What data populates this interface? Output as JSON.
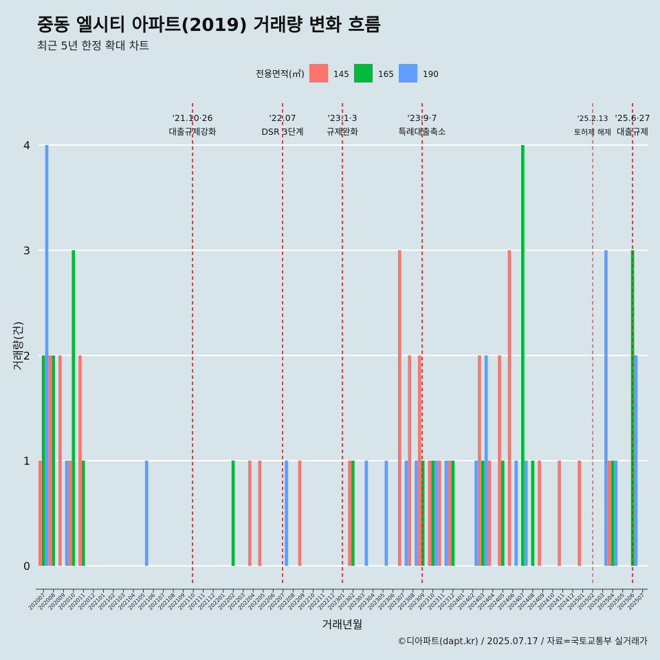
{
  "title": "중동 엘시티 아파트(2019) 거래량 변화 흐름",
  "subtitle": "최근 5년 한정 확대 차트",
  "caption": "©디아파트(dapt.kr) / 2025.07.17 / 자료=국토교통부 실거래가",
  "colors": {
    "background": "#d7e4ea",
    "gridline": "#ffffff",
    "event_line": "#e41a1c"
  },
  "chart_data": {
    "type": "bar",
    "title": "중동 엘시티 아파트(2019) 거래량 변화 흐름",
    "subtitle": "최근 5년 한정 확대 차트",
    "xlabel": "거래년월",
    "ylabel": "거래량(건)",
    "ylim": [
      0,
      4
    ],
    "y_ticks": [
      "0",
      "1",
      "2",
      "3",
      "4"
    ],
    "grid": true,
    "legend": {
      "title": "전용면적(㎡)",
      "position": "top"
    },
    "categories": [
      "202007",
      "202008",
      "202009",
      "202010",
      "202011",
      "202012",
      "202101",
      "202102",
      "202103",
      "202104",
      "202105",
      "202106",
      "202107",
      "202108",
      "202109",
      "202110",
      "202111",
      "202112",
      "202201",
      "202202",
      "202203",
      "202204",
      "202205",
      "202206",
      "202207",
      "202208",
      "202209",
      "202210",
      "202211",
      "202212",
      "202301",
      "202302",
      "202303",
      "202304",
      "202305",
      "202306",
      "202307",
      "202308",
      "202309",
      "202310",
      "202311",
      "202312",
      "202401",
      "202402",
      "202403",
      "202404",
      "202405",
      "202406",
      "202407",
      "202408",
      "202409",
      "202410",
      "202411",
      "202412",
      "202501",
      "202502",
      "202503",
      "202504",
      "202505",
      "202506",
      "202507"
    ],
    "series": [
      {
        "name": "145",
        "color": "#f8766d",
        "values": [
          1,
          2,
          2,
          1,
          2,
          0,
          0,
          0,
          0,
          0,
          0,
          0,
          0,
          0,
          0,
          0,
          0,
          0,
          0,
          0,
          0,
          1,
          1,
          0,
          0,
          0,
          1,
          0,
          0,
          0,
          0,
          1,
          0,
          0,
          0,
          0,
          3,
          2,
          2,
          1,
          1,
          1,
          0,
          0,
          2,
          1,
          2,
          3,
          0,
          0,
          1,
          0,
          1,
          0,
          1,
          0,
          0,
          1,
          0,
          0,
          0
        ]
      },
      {
        "name": "165",
        "color": "#00ba38",
        "values": [
          2,
          2,
          0,
          3,
          1,
          0,
          0,
          0,
          0,
          0,
          0,
          0,
          0,
          0,
          0,
          0,
          0,
          0,
          0,
          1,
          0,
          0,
          0,
          0,
          0,
          0,
          0,
          0,
          0,
          0,
          0,
          1,
          0,
          0,
          0,
          0,
          0,
          0,
          1,
          1,
          0,
          1,
          0,
          0,
          1,
          0,
          1,
          0,
          4,
          1,
          0,
          0,
          0,
          0,
          0,
          0,
          0,
          1,
          0,
          3,
          0
        ]
      },
      {
        "name": "190",
        "color": "#619cff",
        "values": [
          4,
          0,
          1,
          0,
          0,
          0,
          0,
          0,
          0,
          0,
          1,
          0,
          0,
          0,
          0,
          0,
          0,
          0,
          0,
          0,
          0,
          0,
          0,
          0,
          1,
          0,
          0,
          0,
          0,
          0,
          0,
          0,
          1,
          0,
          1,
          0,
          1,
          1,
          0,
          1,
          1,
          0,
          0,
          1,
          2,
          0,
          0,
          1,
          1,
          0,
          0,
          0,
          0,
          0,
          0,
          0,
          3,
          1,
          0,
          2,
          0
        ]
      }
    ],
    "events": [
      {
        "date": "'21.10·26",
        "label": "대출규제강화"
      },
      {
        "date": "'22.07",
        "label": "DSR 3단계"
      },
      {
        "date": "'23.1·3",
        "label": "규제완화"
      },
      {
        "date": "'23.9·7",
        "label": "특례대출축소"
      },
      {
        "date": "'25.2.13",
        "label": "토허제 해제"
      },
      {
        "date": "'25.6·27",
        "label": "대출규제"
      }
    ]
  }
}
